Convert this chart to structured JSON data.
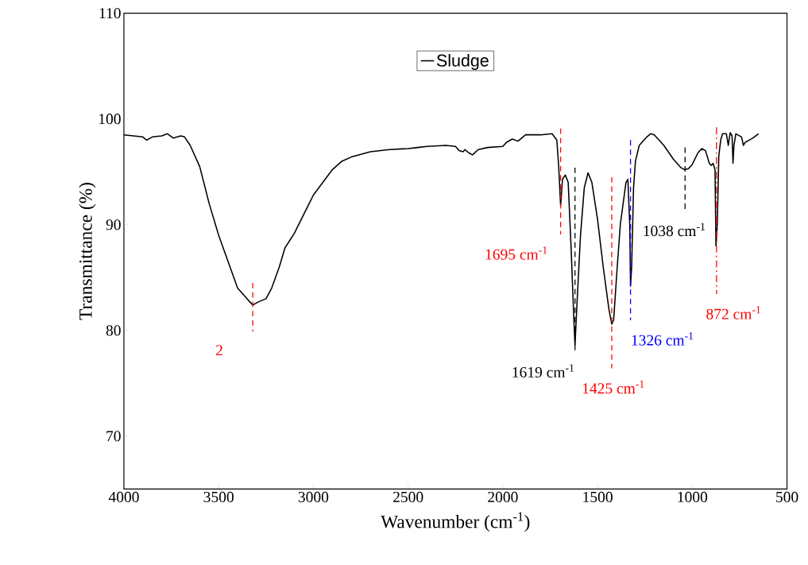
{
  "chart_data": {
    "type": "line",
    "xlabel": "Wavenumber (cm$^{-1}$)",
    "ylabel": "Transmittance (%)",
    "x": [
      4000,
      3900,
      3880,
      3850,
      3800,
      3770,
      3740,
      3700,
      3680,
      3650,
      3600,
      3550,
      3500,
      3450,
      3400,
      3350,
      3320,
      3290,
      3250,
      3220,
      3180,
      3150,
      3100,
      3050,
      3000,
      2950,
      2900,
      2850,
      2800,
      2700,
      2600,
      2500,
      2450,
      2400,
      2300,
      2250,
      2230,
      2210,
      2200,
      2180,
      2160,
      2130,
      2080,
      2000,
      1980,
      1950,
      1920,
      1880,
      1800,
      1740,
      1715,
      1705,
      1695,
      1685,
      1670,
      1655,
      1640,
      1625,
      1619,
      1610,
      1590,
      1570,
      1550,
      1530,
      1500,
      1470,
      1440,
      1425,
      1415,
      1400,
      1380,
      1350,
      1340,
      1330,
      1326,
      1320,
      1310,
      1300,
      1280,
      1240,
      1220,
      1200,
      1150,
      1100,
      1060,
      1040,
      1020,
      1000,
      970,
      950,
      930,
      910,
      900,
      890,
      880,
      875,
      868,
      860,
      850,
      840,
      820,
      810,
      800,
      790,
      785,
      780,
      770,
      760,
      740,
      730,
      720,
      700,
      680,
      650
    ],
    "series": [
      {
        "name": "Sludge",
        "color": "#000000",
        "values": [
          98.5,
          98.3,
          98.0,
          98.3,
          98.4,
          98.6,
          98.2,
          98.4,
          98.3,
          97.5,
          95.5,
          92.0,
          89.0,
          86.5,
          84.0,
          83.0,
          82.4,
          82.7,
          83.0,
          84.0,
          86.0,
          87.8,
          89.2,
          91.0,
          92.8,
          94.0,
          95.2,
          96.0,
          96.4,
          96.9,
          97.1,
          97.2,
          97.3,
          97.4,
          97.5,
          97.4,
          97.0,
          96.9,
          97.1,
          96.8,
          96.6,
          97.1,
          97.3,
          97.4,
          97.8,
          98.1,
          97.9,
          98.5,
          98.5,
          98.6,
          98.0,
          95.5,
          91.8,
          94.3,
          94.7,
          94.0,
          88.0,
          81.0,
          78.6,
          82.0,
          89.0,
          93.5,
          94.9,
          94.0,
          90.5,
          86.0,
          82.0,
          80.6,
          81.0,
          85.0,
          90.0,
          94.0,
          94.3,
          90.0,
          84.2,
          86.0,
          93.5,
          96.0,
          97.5,
          98.3,
          98.6,
          98.5,
          97.5,
          96.2,
          95.4,
          95.2,
          95.3,
          95.7,
          96.8,
          97.2,
          97.0,
          95.8,
          95.6,
          95.8,
          95.2,
          88.0,
          90.0,
          96.5,
          98.0,
          98.6,
          98.6,
          97.5,
          98.7,
          98.4,
          95.8,
          97.5,
          98.6,
          98.5,
          98.3,
          97.5,
          97.8,
          98.0,
          98.2,
          98.6
        ]
      }
    ],
    "xlim": [
      4000,
      500
    ],
    "xticks": [
      4000,
      3500,
      3000,
      2500,
      2000,
      1500,
      1000,
      500
    ],
    "ylim": [
      65,
      110
    ],
    "yticks": [
      70,
      80,
      90,
      100,
      110
    ],
    "grid": false,
    "legend": "top",
    "line_style": "solid",
    "marker": "none",
    "ref_lines": [
      {
        "axis": "x",
        "value": 3320,
        "color": "#ff0000",
        "line_style": "dashed"
      },
      {
        "axis": "x",
        "value": 1695,
        "label": "1695 cm$^{-1}$",
        "color": "#ff0000",
        "line_style": "dashed"
      },
      {
        "axis": "x",
        "value": 1619,
        "label": "1619 cm$^{-1}$",
        "color": "#000000",
        "line_style": "dashed"
      },
      {
        "axis": "x",
        "value": 1425,
        "label": "1425 cm$^{-1}$",
        "color": "#ff0000",
        "line_style": "dashed"
      },
      {
        "axis": "x",
        "value": 1326,
        "label": "1326 cm$^{-1}$",
        "color": "#0000ff",
        "line_style": "dashed"
      },
      {
        "axis": "x",
        "value": 1038,
        "label": "1038 cm$^{-1}$",
        "color": "#000000",
        "line_style": "dashed"
      },
      {
        "axis": "x",
        "value": 872,
        "label": "872 cm$^{-1}$",
        "color": "#ff0000",
        "line_style": "dashdot"
      }
    ],
    "annotations": [
      "2"
    ]
  }
}
